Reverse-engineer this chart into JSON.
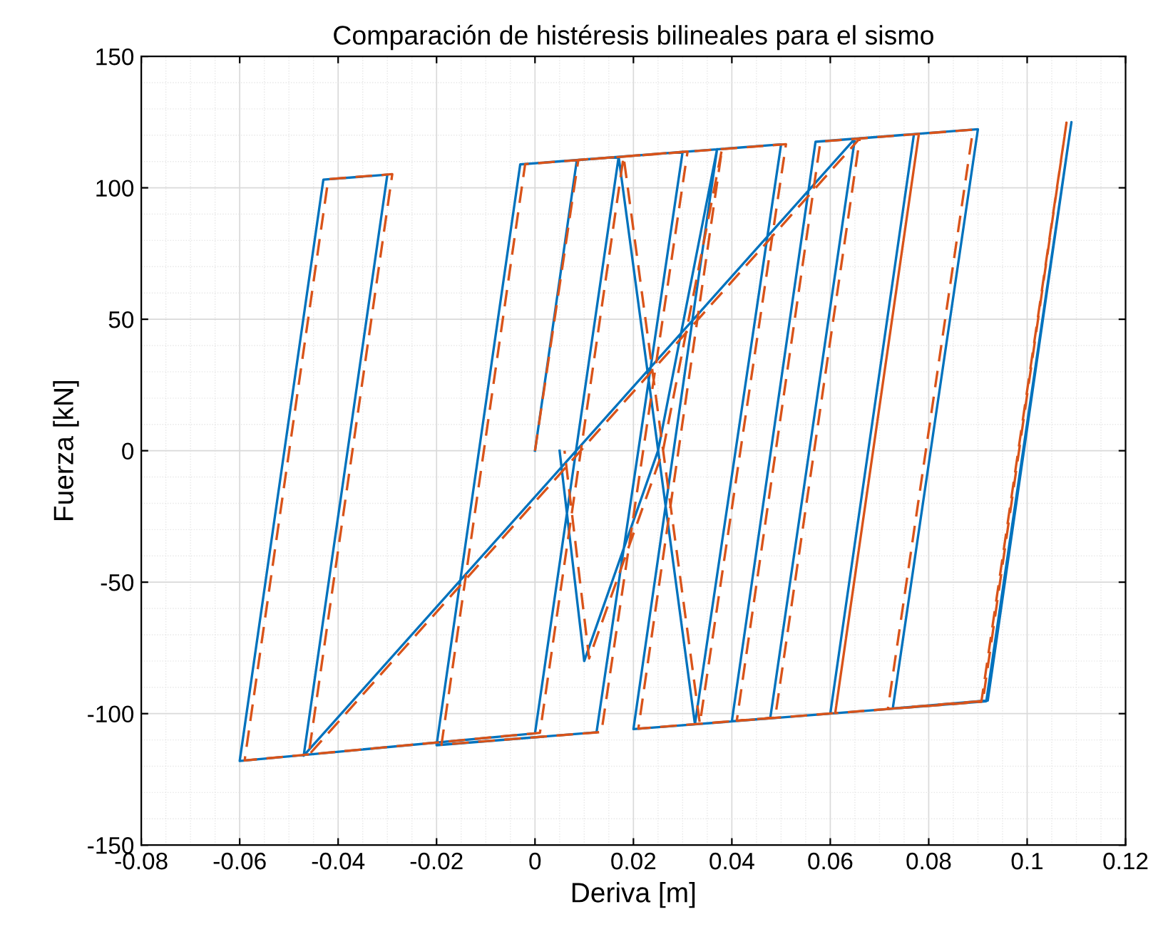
{
  "chart_data": {
    "type": "line",
    "title": "Comparación de histéresis bilineales para el sismo",
    "xlabel": "Deriva [m]",
    "ylabel": "Fuerza [kN]",
    "xlim": [
      -0.08,
      0.12
    ],
    "ylim": [
      -150,
      150
    ],
    "xticks": [
      -0.08,
      -0.06,
      -0.04,
      -0.02,
      0,
      0.02,
      0.04,
      0.06,
      0.08,
      {
        "value": 0.1,
        "label": "0.1"
      },
      0.12
    ],
    "yticks": [
      -150,
      -100,
      -50,
      0,
      50,
      100,
      150
    ],
    "grid": true,
    "marker": "none",
    "series": [
      {
        "color": "#0072bd",
        "line_style": "solid",
        "x": [
          0,
          0.0085,
          0.03,
          0.0125,
          -0.02,
          -0.003,
          0.05,
          0.0325,
          0.017,
          0.0,
          -0.06,
          -0.043,
          -0.03,
          -0.047,
          0.065,
          0.0478,
          0.04,
          0.057,
          0.09,
          0.0727,
          0.092,
          0.109,
          0.0917,
          0.06,
          0.077,
          0.06,
          0.02,
          0.037,
          0.025,
          0.01,
          0.005
        ],
        "values": [
          0,
          110.5,
          113.7,
          -107.1,
          -112.0,
          108.9,
          116.5,
          -104.0,
          111.8,
          -107.5,
          -118.0,
          103.1,
          105.0,
          -116.0,
          118.7,
          -101.7,
          -102.9,
          117.5,
          122.3,
          -98.0,
          -95.0,
          125.0,
          -95.3,
          -100,
          120.4,
          -100,
          -105.9,
          114.7,
          0,
          -80,
          0
        ]
      },
      {
        "color": "#d95319",
        "line_style": "dashed",
        "x": [
          0,
          0.0088,
          0.031,
          0.0135,
          -0.019,
          -0.002,
          0.051,
          0.0335,
          0.018,
          0.001,
          -0.059,
          -0.042,
          -0.029,
          -0.046,
          0.066,
          0.0488,
          0.041,
          0.058,
          0.089,
          0.0717,
          0.091,
          0.108,
          0.0907,
          0.061,
          0.078,
          0.061,
          0.021,
          0.038,
          0.026,
          0.011,
          0.006
        ],
        "values": [
          0,
          110.6,
          113.8,
          -107.0,
          -111.8,
          109.0,
          116.6,
          -103.8,
          111.9,
          -107.3,
          -117.8,
          103.3,
          105.2,
          -115.8,
          118.8,
          -101.5,
          -102.7,
          117.6,
          122.1,
          -98.2,
          -95.2,
          124.8,
          -95.5,
          -99.8,
          120.5,
          -99.8,
          -105.7,
          114.8,
          0,
          -79,
          0
        ]
      }
    ]
  }
}
